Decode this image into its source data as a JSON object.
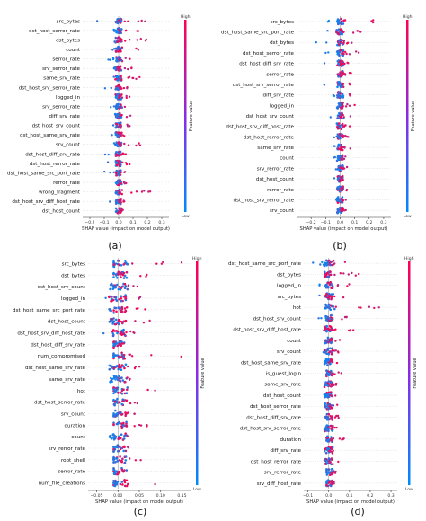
{
  "colors": {
    "high": "#ff0051",
    "low": "#008bfb",
    "zero_line": "#999999",
    "axis": "#333333"
  },
  "colorbar": {
    "label": "Feature value",
    "high": "High",
    "low": "Low"
  },
  "chart_data": [
    {
      "type": "scatter",
      "panel_label": "(a)",
      "xlabel": "SHAP value (impact on model output)",
      "xlim": [
        -0.25,
        0.35
      ],
      "xticks": [
        -0.2,
        -0.1,
        0.0,
        0.1,
        0.2,
        0.3
      ],
      "xtick_labels": [
        "−0.2",
        "−0.1",
        "0.0",
        "0.1",
        "0.2",
        "0.3"
      ],
      "features": [
        "src_bytes",
        "dst_host_serror_rate",
        "dst_bytes",
        "count",
        "serror_rate",
        "srv_serror_rate",
        "same_srv_rate",
        "dst_host_srv_serror_rate",
        "logged_in",
        "srv_serror_rate",
        "diff_srv_rate",
        "dst_host_srv_count",
        "dst_host_same_srv_rate",
        "srv_count",
        "dst_host_diff_srv_rate",
        "dst_host_rerror_rate",
        "dst_host_same_src_port_rate",
        "rerror_rate",
        "wrong_fragment",
        "dst_host_srv_diff_host_rate",
        "dst_host_count"
      ],
      "spread": [
        [
          -0.15,
          0.2
        ],
        [
          -0.15,
          0.15
        ],
        [
          -0.1,
          0.2
        ],
        [
          -0.05,
          0.15
        ],
        [
          -0.1,
          0.1
        ],
        [
          -0.08,
          0.1
        ],
        [
          -0.05,
          0.15
        ],
        [
          -0.1,
          0.08
        ],
        [
          -0.05,
          0.1
        ],
        [
          -0.08,
          0.07
        ],
        [
          -0.05,
          0.1
        ],
        [
          -0.08,
          0.08
        ],
        [
          -0.1,
          0.05
        ],
        [
          -0.05,
          0.15
        ],
        [
          -0.12,
          0.05
        ],
        [
          -0.08,
          0.08
        ],
        [
          -0.1,
          0.05
        ],
        [
          -0.05,
          0.06
        ],
        [
          -0.02,
          0.32
        ],
        [
          -0.08,
          0.04
        ],
        [
          -0.05,
          0.03
        ]
      ]
    },
    {
      "type": "scatter",
      "panel_label": "(b)",
      "xlabel": "SHAP value (impact on model output)",
      "xlim": [
        -0.3,
        0.35
      ],
      "xticks": [
        -0.2,
        -0.1,
        0.0,
        0.1,
        0.2,
        0.3
      ],
      "xtick_labels": [
        "−0.2",
        "−0.1",
        "0.0",
        "0.1",
        "0.2",
        "0.3"
      ],
      "features": [
        "src_bytes",
        "dst_host_same_src_port_rate",
        "dst_bytes",
        "dst_host_serror_rate",
        "dst_host_diff_srv_rate",
        "serror_rate",
        "dst_host_srv_serror_rate",
        "diff_srv_rate",
        "logged_in",
        "dst_host_srv_count",
        "dst_host_srv_diff_host_rate",
        "dst_host_rerror_rate",
        "same_srv_rate",
        "count",
        "srv_rerror_rate",
        "dst_host_count",
        "rerror_rate",
        "dst_host_srv_rerror_rate",
        "srv_count"
      ],
      "spread": [
        [
          -0.1,
          0.3
        ],
        [
          -0.25,
          0.15
        ],
        [
          -0.2,
          0.08
        ],
        [
          -0.1,
          0.15
        ],
        [
          -0.15,
          0.1
        ],
        [
          -0.1,
          0.08
        ],
        [
          -0.12,
          0.1
        ],
        [
          -0.05,
          0.1
        ],
        [
          -0.05,
          0.1
        ],
        [
          -0.08,
          0.08
        ],
        [
          -0.15,
          0.08
        ],
        [
          -0.05,
          0.06
        ],
        [
          -0.05,
          0.08
        ],
        [
          -0.08,
          0.06
        ],
        [
          -0.04,
          0.05
        ],
        [
          -0.06,
          0.05
        ],
        [
          -0.04,
          0.05
        ],
        [
          -0.05,
          0.04
        ],
        [
          -0.04,
          0.04
        ]
      ]
    },
    {
      "type": "scatter",
      "panel_label": "(c)",
      "xlabel": "SHAP value (impact on model output)",
      "xlim": [
        -0.07,
        0.17
      ],
      "xticks": [
        -0.05,
        0.0,
        0.05,
        0.1,
        0.15
      ],
      "xtick_labels": [
        "−0.05",
        "0.00",
        "0.05",
        "0.10",
        "0.15"
      ],
      "features": [
        "src_bytes",
        "dst_bytes",
        "dst_host_srv_count",
        "logged_in",
        "dst_host_same_src_port_rate",
        "dst_host_count",
        "dst_host_srv_diff_host_rate",
        "dst_host_diff_srv_rate",
        "num_compromised",
        "dst_host_same_srv_rate",
        "same_srv_rate",
        "hot",
        "dst_host_serror_rate",
        "srv_count",
        "duration",
        "count",
        "srv_rerror_rate",
        "root_shell",
        "serror_rate",
        "num_file_creations"
      ],
      "spread": [
        [
          -0.01,
          0.15
        ],
        [
          -0.01,
          0.12
        ],
        [
          -0.02,
          0.08
        ],
        [
          -0.03,
          0.06
        ],
        [
          -0.03,
          0.1
        ],
        [
          -0.02,
          0.08
        ],
        [
          -0.04,
          0.05
        ],
        [
          -0.01,
          0.03
        ],
        [
          -0.01,
          0.15
        ],
        [
          -0.02,
          0.06
        ],
        [
          -0.02,
          0.05
        ],
        [
          -0.01,
          0.12
        ],
        [
          -0.01,
          0.05
        ],
        [
          -0.01,
          0.04
        ],
        [
          -0.01,
          0.07
        ],
        [
          -0.02,
          0.03
        ],
        [
          -0.01,
          0.03
        ],
        [
          -0.01,
          0.06
        ],
        [
          -0.01,
          0.02
        ],
        [
          -0.01,
          0.12
        ]
      ]
    },
    {
      "type": "scatter",
      "panel_label": "(d)",
      "xlabel": "SHAP value (impact on model output)",
      "xlim": [
        -0.12,
        0.33
      ],
      "xticks": [
        -0.1,
        0.0,
        0.1,
        0.2,
        0.3
      ],
      "xtick_labels": [
        "−0.1",
        "0.0",
        "0.1",
        "0.2",
        "0.3"
      ],
      "features": [
        "dst_host_same_src_port_rate",
        "dst_bytes",
        "logged_in",
        "src_bytes",
        "hot",
        "dst_host_srv_count",
        "dst_host_srv_diff_host_rate",
        "count",
        "srv_count",
        "dst_host_same_srv_rate",
        "is_guest_login",
        "same_srv_rate",
        "dst_host_count",
        "dst_host_serror_rate",
        "dst_host_diff_srv_rate",
        "dst_host_srv_serror_rate",
        "duration",
        "diff_srv_rate",
        "dst_host_rerror_rate",
        "srv_rerror_rate",
        "srv_diff_host_rate"
      ],
      "spread": [
        [
          -0.08,
          0.15
        ],
        [
          -0.1,
          0.2
        ],
        [
          -0.05,
          0.12
        ],
        [
          -0.05,
          0.1
        ],
        [
          -0.05,
          0.3
        ],
        [
          -0.06,
          0.1
        ],
        [
          -0.05,
          0.12
        ],
        [
          -0.04,
          0.06
        ],
        [
          -0.03,
          0.06
        ],
        [
          -0.02,
          0.05
        ],
        [
          -0.01,
          0.1
        ],
        [
          -0.03,
          0.05
        ],
        [
          -0.03,
          0.04
        ],
        [
          -0.02,
          0.05
        ],
        [
          -0.03,
          0.05
        ],
        [
          -0.02,
          0.04
        ],
        [
          -0.01,
          0.08
        ],
        [
          -0.02,
          0.03
        ],
        [
          -0.02,
          0.05
        ],
        [
          -0.01,
          0.04
        ],
        [
          -0.01,
          0.03
        ]
      ]
    }
  ]
}
